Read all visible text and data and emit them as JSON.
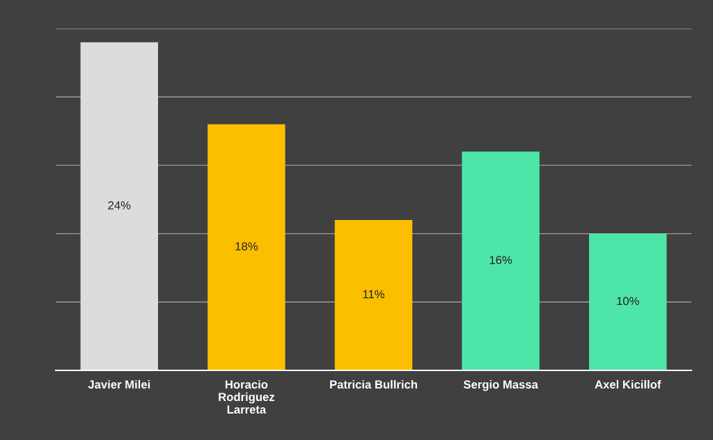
{
  "chart_data": {
    "type": "bar",
    "categories": [
      "Javier Milei",
      "Horacio\nRodriguez\nLarreta",
      "Patricia Bullrich",
      "Sergio Massa",
      "Axel Kicillof"
    ],
    "values": [
      24,
      18,
      11,
      16,
      10
    ],
    "colors": [
      "#dcdcdc",
      "#fbbf00",
      "#fbbf00",
      "#4ee6a8",
      "#4ee6a8"
    ],
    "value_labels": [
      "24%",
      "18%",
      "11%",
      "16%",
      "10%"
    ],
    "ylim": [
      0,
      25
    ],
    "yticks": [
      {
        "value": 0,
        "label": null
      },
      {
        "value": 5,
        "label": null
      },
      {
        "value": 10,
        "label": null
      },
      {
        "value": 15,
        "label": null
      },
      {
        "value": 20,
        "label": null
      },
      {
        "value": 25,
        "label": null
      }
    ],
    "grid": "y",
    "tick_labels": "x"
  }
}
